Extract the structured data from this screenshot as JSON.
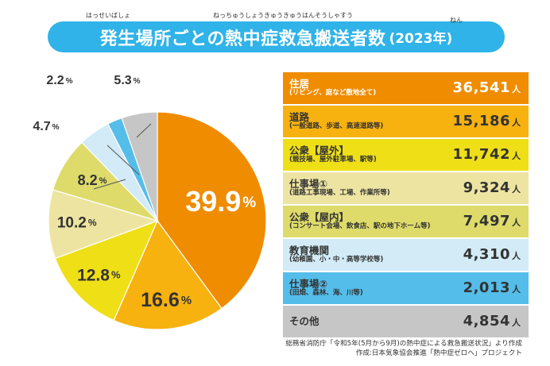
{
  "header": {
    "title": "発生場所ごとの熱中症救急搬送者数",
    "year": "(2023年)",
    "ruby_title1": "はっせいばしょ",
    "ruby_title2": "ねっちゅうしょうきゅうきゅうはんそうしゃすう",
    "ruby_year": "ねん"
  },
  "chart_data": {
    "type": "pie",
    "unit_percent": "%",
    "slices": [
      {
        "label": "住居",
        "percent": 39.9,
        "color": "#f08c00"
      },
      {
        "label": "道路",
        "percent": 16.6,
        "color": "#f7b20f"
      },
      {
        "label": "公衆【屋外】",
        "percent": 12.8,
        "color": "#efdf17"
      },
      {
        "label": "仕事場①",
        "percent": 10.2,
        "color": "#eee4a2"
      },
      {
        "label": "公衆【屋内】",
        "percent": 8.2,
        "color": "#dedb6a"
      },
      {
        "label": "教育機関",
        "percent": 4.7,
        "color": "#d2ebf7"
      },
      {
        "label": "仕事場②",
        "percent": 2.2,
        "color": "#55bde9"
      },
      {
        "label": "その他",
        "percent": 5.3,
        "color": "#c6c6c6"
      }
    ]
  },
  "table": {
    "unit": "人",
    "rows": [
      {
        "name": "住居",
        "sub": "(リビング、庭など敷地全て)",
        "value": "36,541",
        "bg": "#f08c00",
        "fg": "#ffffff"
      },
      {
        "name": "道路",
        "sub": "(一般道路、歩道、高速道路等)",
        "value": "15,186",
        "bg": "#f7b20f",
        "fg": "#333333"
      },
      {
        "name": "公衆【屋外】",
        "sub": "(競技場、屋外駐車場、駅等)",
        "value": "11,742",
        "bg": "#efdf17",
        "fg": "#333333"
      },
      {
        "name": "仕事場①",
        "sub": "(道路工事現場、工場、作業所等)",
        "value": "9,324",
        "bg": "#eee4a2",
        "fg": "#333333"
      },
      {
        "name": "公衆【屋内】",
        "sub": "(コンサート会場、飲食店、駅の地下ホーム等)",
        "value": "7,497",
        "bg": "#dedb6a",
        "fg": "#333333"
      },
      {
        "name": "教育機関",
        "sub": "(幼稚園、小・中・高等学校等)",
        "value": "4,310",
        "bg": "#d2ebf7",
        "fg": "#333333"
      },
      {
        "name": "仕事場②",
        "sub": "(田畑、森林、海、川等)",
        "value": "2,013",
        "bg": "#55bde9",
        "fg": "#333333"
      },
      {
        "name": "その他",
        "sub": "",
        "value": "4,854",
        "bg": "#c6c6c6",
        "fg": "#333333"
      }
    ]
  },
  "source": {
    "line1": "総務省消防庁「令和5年(5月から9月)の熱中症による救急搬送状況」より作成",
    "line2": "作成:日本気象協会推進「熱中症ゼロへ」プロジェクト"
  }
}
